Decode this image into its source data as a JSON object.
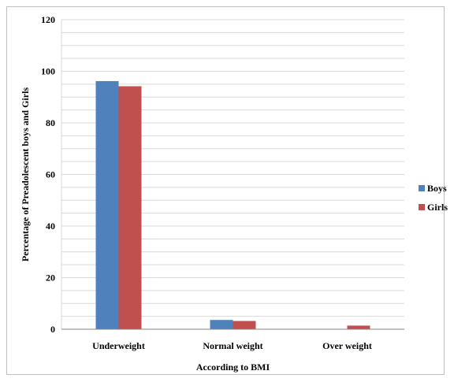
{
  "chart_data": {
    "type": "bar",
    "categories": [
      "Underweight",
      "Normal weight",
      "Over weight"
    ],
    "series": [
      {
        "name": "Boys",
        "values": [
          96.2,
          3.6,
          0
        ],
        "color": "#4f81bd"
      },
      {
        "name": "Girls",
        "values": [
          94.2,
          3.2,
          1.4
        ],
        "color": "#c0504d"
      }
    ],
    "title": "",
    "xlabel": "According to BMI",
    "ylabel": "Percentage of Preadolescent boys and Girls",
    "ylim": [
      0,
      120
    ],
    "yticks": [
      0,
      20,
      40,
      60,
      80,
      100,
      120
    ],
    "grid": true,
    "legend_position": "right"
  }
}
